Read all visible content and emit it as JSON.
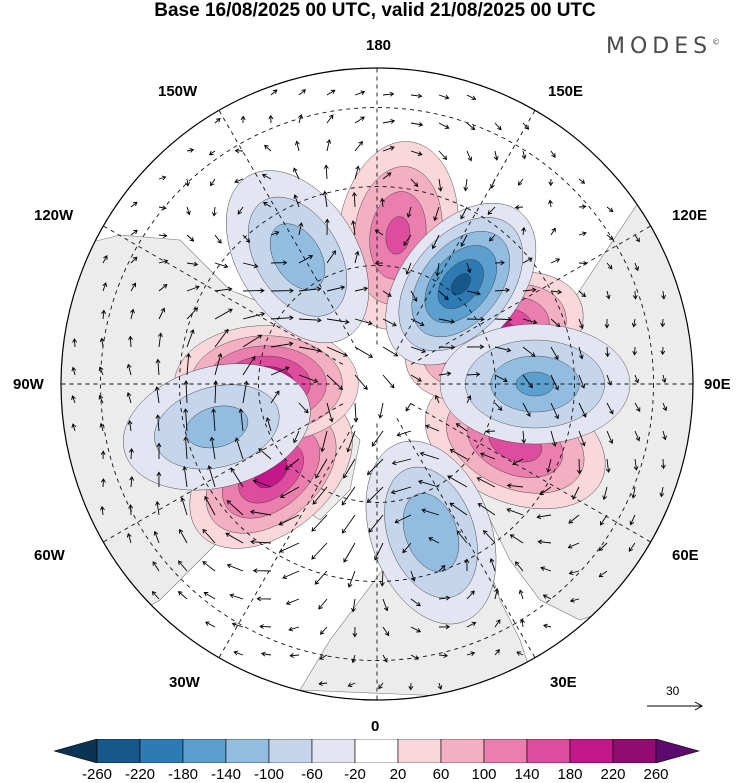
{
  "title": "Base 16/08/2025 00 UTC, valid 21/08/2025 00 UTC",
  "brand": "MODES",
  "brand_mark": "©",
  "longitude_labels": {
    "top": "180",
    "bottom": "0",
    "left": "90W",
    "right": "90E",
    "upper_left_1": "150W",
    "upper_left_2": "120W",
    "lower_left_1": "60W",
    "lower_left_2": "30W",
    "upper_right_1": "150E",
    "upper_right_2": "120E",
    "lower_right_1": "60E",
    "lower_right_2": "30E"
  },
  "reference_vector": "30",
  "colorbar": {
    "ticks": [
      "-260",
      "-220",
      "-180",
      "-140",
      "-100",
      "-60",
      "-20",
      "20",
      "60",
      "100",
      "140",
      "180",
      "220",
      "260"
    ],
    "colors": [
      "#0b3354",
      "#16588a",
      "#2d7ab4",
      "#5a9fcd",
      "#93bde0",
      "#c5d6ec",
      "#e3e5f2",
      "#ffffff",
      "#f9d7db",
      "#f3b0c2",
      "#ea7fae",
      "#dd4c9d",
      "#c4168b",
      "#920b73",
      "#5c0a6b"
    ]
  },
  "anomaly_centers": [
    {
      "lon": -50,
      "lat": 55,
      "sign": "positive",
      "amplitude": 200
    },
    {
      "lon": -90,
      "lat": 62,
      "sign": "positive",
      "amplitude": 230
    },
    {
      "lon": 67,
      "lat": 52,
      "sign": "positive",
      "amplitude": 170
    },
    {
      "lon": 112,
      "lat": 58,
      "sign": "positive",
      "amplitude": 210
    },
    {
      "lon": 172,
      "lat": 52,
      "sign": "positive",
      "amplitude": 150
    },
    {
      "lon": 140,
      "lat": 57,
      "sign": "negative",
      "amplitude": 230
    },
    {
      "lon": 90,
      "lat": 50,
      "sign": "negative",
      "amplitude": 150
    },
    {
      "lon": 20,
      "lat": 50,
      "sign": "negative",
      "amplitude": 140
    },
    {
      "lon": -148,
      "lat": 52,
      "sign": "negative",
      "amplitude": 130
    },
    {
      "lon": -75,
      "lat": 48,
      "sign": "negative",
      "amplitude": 120
    }
  ]
}
